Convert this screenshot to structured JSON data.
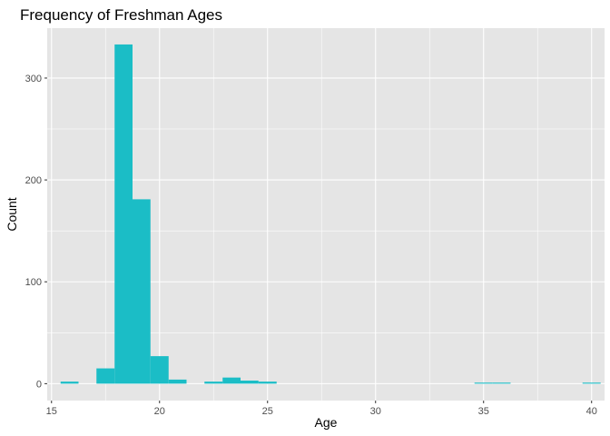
{
  "chart_data": {
    "type": "bar",
    "title": "Frequency of Freshman Ages",
    "xlabel": "Age",
    "ylabel": "Count",
    "xlim": [
      14.8,
      40.6
    ],
    "ylim": [
      -16.6,
      349
    ],
    "x_ticks": [
      15,
      20,
      25,
      30,
      35,
      40
    ],
    "y_ticks": [
      0,
      100,
      200,
      300
    ],
    "bin_width": 0.833,
    "bars": [
      {
        "start": 15.42,
        "end": 16.25,
        "count": 2
      },
      {
        "start": 17.08,
        "end": 17.92,
        "count": 15
      },
      {
        "start": 17.92,
        "end": 18.75,
        "count": 333
      },
      {
        "start": 18.75,
        "end": 19.58,
        "count": 181
      },
      {
        "start": 19.58,
        "end": 20.42,
        "count": 27
      },
      {
        "start": 20.42,
        "end": 21.25,
        "count": 4
      },
      {
        "start": 22.08,
        "end": 22.92,
        "count": 2
      },
      {
        "start": 22.92,
        "end": 23.75,
        "count": 6
      },
      {
        "start": 23.75,
        "end": 24.58,
        "count": 3
      },
      {
        "start": 24.58,
        "end": 25.42,
        "count": 2
      },
      {
        "start": 34.58,
        "end": 35.42,
        "count": 1
      },
      {
        "start": 35.42,
        "end": 36.25,
        "count": 1
      },
      {
        "start": 39.58,
        "end": 40.42,
        "count": 1
      }
    ],
    "fill_color": "#1bbdc6",
    "panel_background": "#e5e5e5",
    "grid_color": "#ffffff",
    "grid": true,
    "legend": "none"
  }
}
